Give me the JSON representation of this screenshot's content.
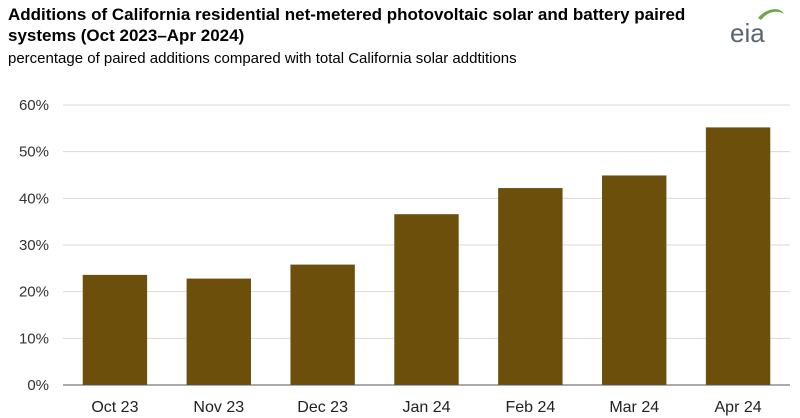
{
  "header": {
    "title": "Additions of California residential net-metered photovoltaic solar and battery paired systems (Oct 2023–Apr 2024)",
    "subtitle": "percentage of paired additions compared with total California solar addtitions",
    "logo_text": "eia"
  },
  "colors": {
    "bar": "#6b4f0a",
    "grid": "#d9d9d9",
    "axis": "#555555",
    "logo_text": "#5b6670",
    "logo_swoosh": "#6aa84f"
  },
  "chart_data": {
    "type": "bar",
    "title": "Additions of California residential net-metered photovoltaic solar and battery paired systems (Oct 2023–Apr 2024)",
    "subtitle": "percentage of paired additions compared with total California solar addtitions",
    "categories": [
      "Oct 23",
      "Nov 23",
      "Dec 23",
      "Jan 24",
      "Feb 24",
      "Mar 24",
      "Apr 24"
    ],
    "values": [
      23.6,
      22.8,
      25.8,
      36.6,
      42.2,
      44.9,
      55.2
    ],
    "ylim": [
      0,
      60
    ],
    "yticks": [
      0,
      10,
      20,
      30,
      40,
      50,
      60
    ],
    "ytick_labels": [
      "0%",
      "10%",
      "20%",
      "30%",
      "40%",
      "50%",
      "60%"
    ],
    "grid": true,
    "legend": "none"
  }
}
